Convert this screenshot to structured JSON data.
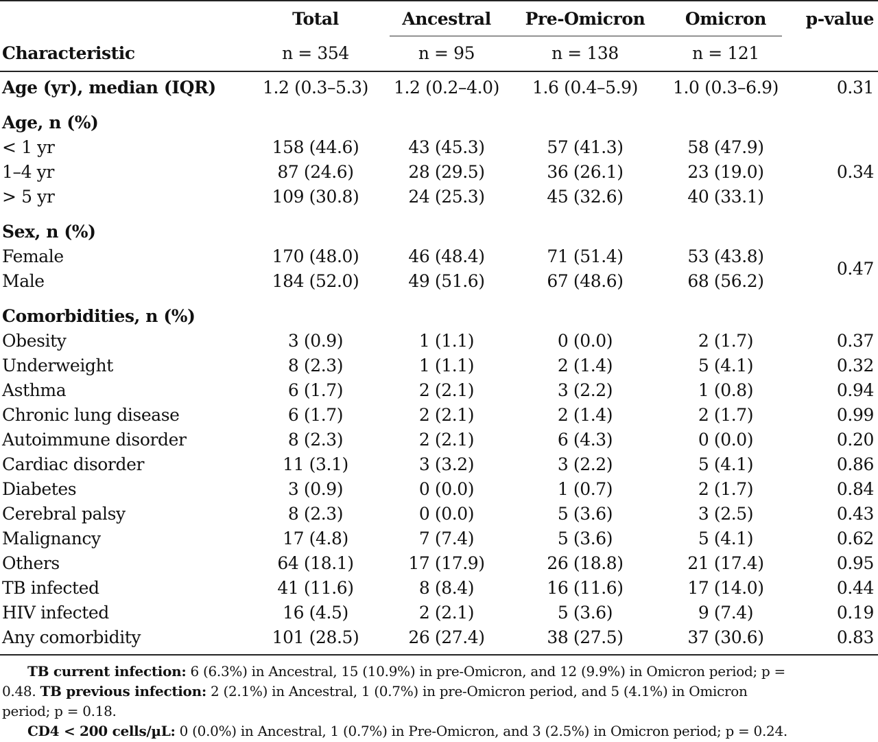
{
  "table": {
    "header_groups": {
      "total": "Total",
      "ancestral": "Ancestral",
      "pre_omicron": "Pre-Omicron",
      "omicron": "Omicron",
      "pvalue": "p-value"
    },
    "header_row2": {
      "characteristic": "Characteristic",
      "n_total": "n = 354",
      "n_ancestral": "n = 95",
      "n_pre": "n = 138",
      "n_omicron": "n = 121"
    },
    "age_median": {
      "label": "Age (yr), median (IQR)",
      "total": "1.2 (0.3–5.3)",
      "ancestral": "1.2 (0.2–4.0)",
      "pre": "1.6 (0.4–5.9)",
      "omicron": "1.0 (0.3–6.9)",
      "p": "0.31"
    },
    "age_group": {
      "title": "Age, n (%)",
      "p": "0.34",
      "rows": [
        {
          "label": "< 1 yr",
          "total": "158 (44.6)",
          "ancestral": "43 (45.3)",
          "pre": "57 (41.3)",
          "omicron": "58 (47.9)"
        },
        {
          "label": "1–4 yr",
          "total": "87 (24.6)",
          "ancestral": "28 (29.5)",
          "pre": "36 (26.1)",
          "omicron": "23 (19.0)"
        },
        {
          "label": "> 5 yr",
          "total": "109 (30.8)",
          "ancestral": "24 (25.3)",
          "pre": "45 (32.6)",
          "omicron": "40 (33.1)"
        }
      ]
    },
    "sex_group": {
      "title": "Sex, n (%)",
      "p": "0.47",
      "rows": [
        {
          "label": "Female",
          "total": "170 (48.0)",
          "ancestral": "46 (48.4)",
          "pre": "71 (51.4)",
          "omicron": "53 (43.8)"
        },
        {
          "label": "Male",
          "total": "184 (52.0)",
          "ancestral": "49 (51.6)",
          "pre": "67 (48.6)",
          "omicron": "68 (56.2)"
        }
      ]
    },
    "comorb_group": {
      "title": "Comorbidities, n (%)",
      "rows": [
        {
          "label": "Obesity",
          "total": "3 (0.9)",
          "ancestral": "1 (1.1)",
          "pre": "0 (0.0)",
          "omicron": "2 (1.7)",
          "p": "0.37"
        },
        {
          "label": "Underweight",
          "total": "8 (2.3)",
          "ancestral": "1 (1.1)",
          "pre": "2 (1.4)",
          "omicron": "5 (4.1)",
          "p": "0.32"
        },
        {
          "label": "Asthma",
          "total": "6 (1.7)",
          "ancestral": "2 (2.1)",
          "pre": "3 (2.2)",
          "omicron": "1 (0.8)",
          "p": "0.94"
        },
        {
          "label": "Chronic lung disease",
          "total": "6 (1.7)",
          "ancestral": "2 (2.1)",
          "pre": "2 (1.4)",
          "omicron": "2 (1.7)",
          "p": "0.99"
        },
        {
          "label": "Autoimmune disorder",
          "total": "8 (2.3)",
          "ancestral": "2 (2.1)",
          "pre": "6 (4.3)",
          "omicron": "0 (0.0)",
          "p": "0.20"
        },
        {
          "label": "Cardiac disorder",
          "total": "11 (3.1)",
          "ancestral": "3 (3.2)",
          "pre": "3 (2.2)",
          "omicron": "5 (4.1)",
          "p": "0.86"
        },
        {
          "label": "Diabetes",
          "total": "3 (0.9)",
          "ancestral": "0 (0.0)",
          "pre": "1 (0.7)",
          "omicron": "2 (1.7)",
          "p": "0.84"
        },
        {
          "label": "Cerebral palsy",
          "total": "8 (2.3)",
          "ancestral": "0 (0.0)",
          "pre": "5 (3.6)",
          "omicron": "3 (2.5)",
          "p": "0.43"
        },
        {
          "label": "Malignancy",
          "total": "17 (4.8)",
          "ancestral": "7 (7.4)",
          "pre": "5 (3.6)",
          "omicron": "5 (4.1)",
          "p": "0.62"
        },
        {
          "label": "Others",
          "total": "64 (18.1)",
          "ancestral": "17 (17.9)",
          "pre": "26 (18.8)",
          "omicron": "21 (17.4)",
          "p": "0.95"
        },
        {
          "label": "TB infected",
          "total": "41 (11.6)",
          "ancestral": "8 (8.4)",
          "pre": "16 (11.6)",
          "omicron": "17 (14.0)",
          "p": "0.44"
        },
        {
          "label": "HIV infected",
          "total": "16 (4.5)",
          "ancestral": "2 (2.1)",
          "pre": "5 (3.6)",
          "omicron": "9 (7.4)",
          "p": "0.19"
        },
        {
          "label": "Any comorbidity",
          "total": "101 (28.5)",
          "ancestral": "26 (27.4)",
          "pre": "38 (27.5)",
          "omicron": "37 (30.6)",
          "p": "0.83"
        }
      ]
    }
  },
  "footnotes": {
    "line1_bold": "TB current infection:",
    "line1_text": " 6 (6.3%) in Ancestral, 15 (10.9%) in pre-Omicron, and 12 (9.9%) in Omicron period; p =",
    "line2_text_a": "0.48. ",
    "line2_bold": "TB previous infection:",
    "line2_text_b": " 2 (2.1%) in Ancestral, 1 (0.7%) in pre-Omicron period, and 5 (4.1%) in Omicron",
    "line3_text": "period; p = 0.18.",
    "line4_bold": "CD4 < 200 cells/µL:",
    "line4_text": " 0 (0.0%) in Ancestral, 1 (0.7%) in Pre-Omicron, and 3 (2.5%) in Omicron period; p = 0.24."
  }
}
